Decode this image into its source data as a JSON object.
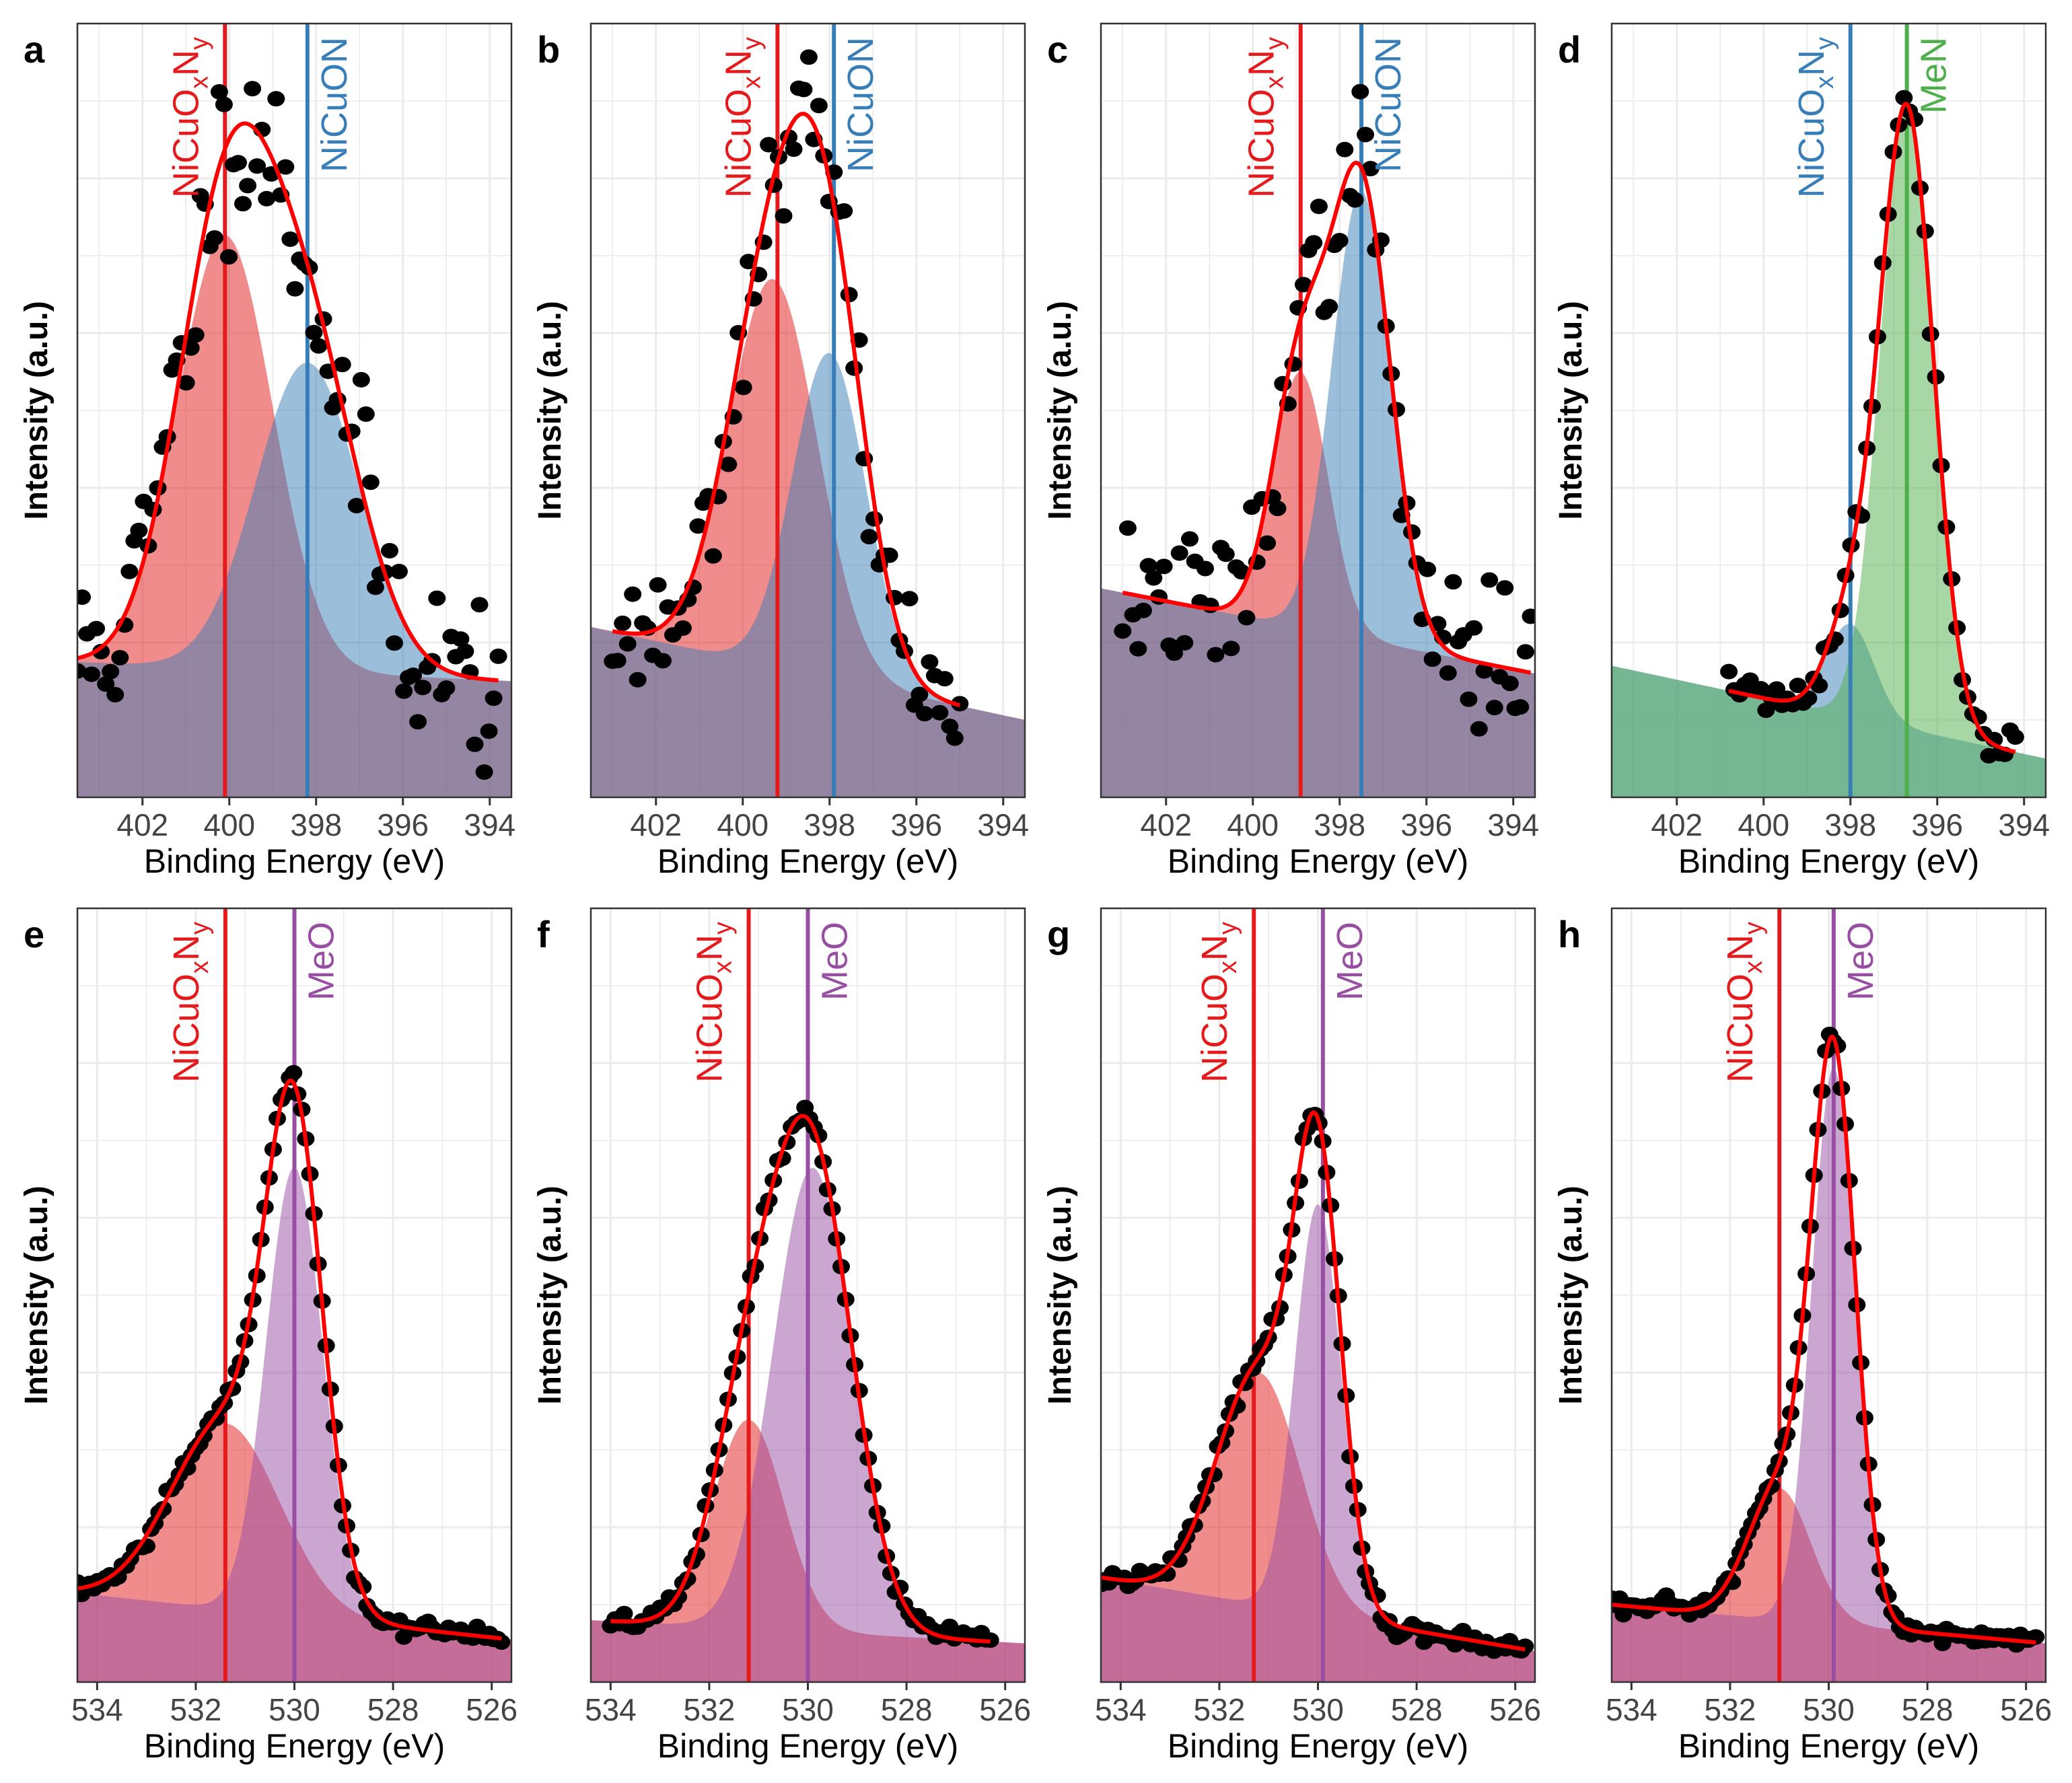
{
  "colors": {
    "red": "#e41a1c",
    "blue": "#377eb8",
    "green": "#4daf4a",
    "purple": "#984ea3",
    "fit": "#ff0000",
    "points": "#000000",
    "grid": "#ebebeb",
    "frame": "#333333"
  },
  "chart_data": [
    {
      "panel": "a",
      "type": "scatter",
      "xlabel": "Binding Energy  (eV)",
      "ylabel": "Intensity (a.u.)",
      "xlim": [
        403.5,
        393.5
      ],
      "xticks": [
        402,
        400,
        398,
        396,
        394
      ],
      "ylim": [
        0,
        1
      ],
      "baseline": [
        0.175,
        0.15
      ],
      "components": [
        {
          "name": "NiCuOxNy",
          "center": 400.1,
          "height": 0.56,
          "fwhm": 2.6,
          "color": "red"
        },
        {
          "name": "NiCuON",
          "center": 398.2,
          "height": 0.4,
          "fwhm": 2.8,
          "color": "blue"
        }
      ],
      "ref_lines": [
        {
          "label": "NiCuOxNy",
          "parts": [
            "NiCuO",
            "x",
            "N",
            "y"
          ],
          "x": 400.1,
          "color": "red"
        },
        {
          "label": "NiCuON",
          "parts": [
            "NiCuON"
          ],
          "x": 398.2,
          "color": "blue"
        }
      ],
      "points": {
        "x_range": [
          403.5,
          393.8
        ],
        "count": 90,
        "noise": 0.06,
        "seed": 11
      }
    },
    {
      "panel": "b",
      "type": "scatter",
      "xlabel": "Binding Energy  (eV)",
      "ylabel": "Intensity (a.u.)",
      "xlim": [
        403.5,
        393.5
      ],
      "xticks": [
        402,
        400,
        398,
        396,
        394
      ],
      "ylim": [
        0,
        1
      ],
      "baseline": [
        0.22,
        0.1
      ],
      "components": [
        {
          "name": "NiCuOxNy",
          "center": 399.3,
          "height": 0.5,
          "fwhm": 2.4,
          "color": "red"
        },
        {
          "name": "NiCuON",
          "center": 398.0,
          "height": 0.42,
          "fwhm": 2.0,
          "color": "blue"
        }
      ],
      "ref_lines": [
        {
          "label": "NiCuOxNy",
          "parts": [
            "NiCuO",
            "x",
            "N",
            "y"
          ],
          "x": 399.2,
          "color": "red"
        },
        {
          "label": "NiCuON",
          "parts": [
            "NiCuON"
          ],
          "x": 397.9,
          "color": "blue"
        }
      ],
      "points": {
        "x_range": [
          403.0,
          395.0
        ],
        "count": 70,
        "noise": 0.035,
        "seed": 23
      }
    },
    {
      "panel": "c",
      "type": "scatter",
      "xlabel": "Binding Energy  (eV)",
      "ylabel": "Intensity (a.u.)",
      "xlim": [
        403.5,
        393.5
      ],
      "xticks": [
        402,
        400,
        398,
        396,
        394
      ],
      "ylim": [
        0,
        1
      ],
      "baseline": [
        0.27,
        0.16
      ],
      "components": [
        {
          "name": "NiCuOxNy",
          "center": 398.9,
          "height": 0.33,
          "fwhm": 1.5,
          "color": "red"
        },
        {
          "name": "NiCuON",
          "center": 397.5,
          "height": 0.58,
          "fwhm": 1.6,
          "color": "blue"
        }
      ],
      "ref_lines": [
        {
          "label": "NiCuOxNy",
          "parts": [
            "NiCuO",
            "x",
            "N",
            "y"
          ],
          "x": 398.9,
          "color": "red"
        },
        {
          "label": "NiCuON",
          "parts": [
            "NiCuON"
          ],
          "x": 397.5,
          "color": "blue"
        }
      ],
      "points": {
        "x_range": [
          403.0,
          393.6
        ],
        "count": 80,
        "noise": 0.045,
        "seed": 37
      }
    },
    {
      "panel": "d",
      "type": "scatter",
      "xlabel": "Binding Energy  (eV)",
      "ylabel": "Intensity (a.u.)",
      "xlim": [
        403.5,
        393.5
      ],
      "xticks": [
        402,
        400,
        398,
        396,
        394
      ],
      "ylim": [
        0,
        1
      ],
      "baseline": [
        0.17,
        0.05
      ],
      "components": [
        {
          "name": "NiCuOxNy",
          "center": 398.0,
          "height": 0.12,
          "fwhm": 1.3,
          "color": "blue"
        },
        {
          "name": "MeN",
          "center": 396.7,
          "height": 0.8,
          "fwhm": 1.45,
          "color": "green"
        }
      ],
      "ref_lines": [
        {
          "label": "NiCuOxNy",
          "parts": [
            "NiCuO",
            "x",
            "N",
            "y"
          ],
          "x": 398.0,
          "color": "blue"
        },
        {
          "label": "MeN",
          "parts": [
            "MeN"
          ],
          "x": 396.7,
          "color": "green"
        }
      ],
      "points": {
        "x_range": [
          400.8,
          394.2
        ],
        "count": 55,
        "noise": 0.015,
        "seed": 41
      }
    },
    {
      "panel": "e",
      "type": "scatter",
      "xlabel": "Binding Energy  (eV)",
      "ylabel": "Intensity (a.u.)",
      "xlim": [
        534.4,
        525.6
      ],
      "xticks": [
        534,
        532,
        530,
        528,
        526
      ],
      "ylim": [
        0,
        1
      ],
      "baseline": [
        0.115,
        0.055
      ],
      "components": [
        {
          "name": "NiCuOxNy",
          "center": 531.4,
          "height": 0.24,
          "fwhm": 2.6,
          "color": "red"
        },
        {
          "name": "MeO",
          "center": 530.0,
          "height": 0.58,
          "fwhm": 1.35,
          "color": "purple"
        }
      ],
      "ref_lines": [
        {
          "label": "NiCuOxNy",
          "parts": [
            "NiCuO",
            "x",
            "N",
            "y"
          ],
          "x": 531.4,
          "color": "red"
        },
        {
          "label": "MeO",
          "parts": [
            "MeO"
          ],
          "x": 530.0,
          "color": "purple"
        }
      ],
      "points": {
        "x_range": [
          534.4,
          525.8
        ],
        "count": 105,
        "noise": 0.006,
        "seed": 53
      }
    },
    {
      "panel": "f",
      "type": "scatter",
      "xlabel": "Binding Energy  (eV)",
      "ylabel": "Intensity (a.u.)",
      "xlim": [
        534.4,
        525.6
      ],
      "xticks": [
        534,
        532,
        530,
        528,
        526
      ],
      "ylim": [
        0,
        1
      ],
      "baseline": [
        0.08,
        0.05
      ],
      "components": [
        {
          "name": "NiCuOxNy",
          "center": 531.2,
          "height": 0.27,
          "fwhm": 1.7,
          "color": "red"
        },
        {
          "name": "MeO",
          "center": 529.9,
          "height": 0.6,
          "fwhm": 1.9,
          "color": "purple"
        }
      ],
      "ref_lines": [
        {
          "label": "NiCuOxNy",
          "parts": [
            "NiCuO",
            "x",
            "N",
            "y"
          ],
          "x": 531.2,
          "color": "red"
        },
        {
          "label": "MeO",
          "parts": [
            "MeO"
          ],
          "x": 530.0,
          "color": "purple"
        }
      ],
      "points": {
        "x_range": [
          534.0,
          526.3
        ],
        "count": 85,
        "noise": 0.006,
        "seed": 67
      }
    },
    {
      "panel": "g",
      "type": "scatter",
      "xlabel": "Binding Energy  (eV)",
      "ylabel": "Intensity (a.u.)",
      "xlim": [
        534.4,
        525.6
      ],
      "xticks": [
        534,
        532,
        530,
        528,
        526
      ],
      "ylim": [
        0,
        1
      ],
      "baseline": [
        0.135,
        0.04
      ],
      "components": [
        {
          "name": "NiCuOxNy",
          "center": 531.2,
          "height": 0.3,
          "fwhm": 2.0,
          "color": "red"
        },
        {
          "name": "MeO",
          "center": 530.0,
          "height": 0.53,
          "fwhm": 1.1,
          "color": "purple"
        }
      ],
      "ref_lines": [
        {
          "label": "NiCuOxNy",
          "parts": [
            "NiCuO",
            "x",
            "N",
            "y"
          ],
          "x": 531.3,
          "color": "red"
        },
        {
          "label": "MeO",
          "parts": [
            "MeO"
          ],
          "x": 529.9,
          "color": "purple"
        }
      ],
      "points": {
        "x_range": [
          534.4,
          525.8
        ],
        "count": 110,
        "noise": 0.006,
        "seed": 79
      }
    },
    {
      "panel": "h",
      "type": "scatter",
      "xlabel": "Binding Energy  (eV)",
      "ylabel": "Intensity (a.u.)",
      "xlim": [
        534.4,
        525.6
      ],
      "xticks": [
        534,
        532,
        530,
        528,
        526
      ],
      "ylim": [
        0,
        1
      ],
      "baseline": [
        0.1,
        0.05
      ],
      "components": [
        {
          "name": "NiCuOxNy",
          "center": 531.0,
          "height": 0.17,
          "fwhm": 1.5,
          "color": "red"
        },
        {
          "name": "MeO",
          "center": 529.9,
          "height": 0.72,
          "fwhm": 1.05,
          "color": "purple"
        }
      ],
      "ref_lines": [
        {
          "label": "NiCuOxNy",
          "parts": [
            "NiCuO",
            "x",
            "N",
            "y"
          ],
          "x": 531.0,
          "color": "red"
        },
        {
          "label": "MeO",
          "parts": [
            "MeO"
          ],
          "x": 529.9,
          "color": "purple"
        }
      ],
      "points": {
        "x_range": [
          534.4,
          525.8
        ],
        "count": 110,
        "noise": 0.006,
        "seed": 97
      }
    }
  ]
}
